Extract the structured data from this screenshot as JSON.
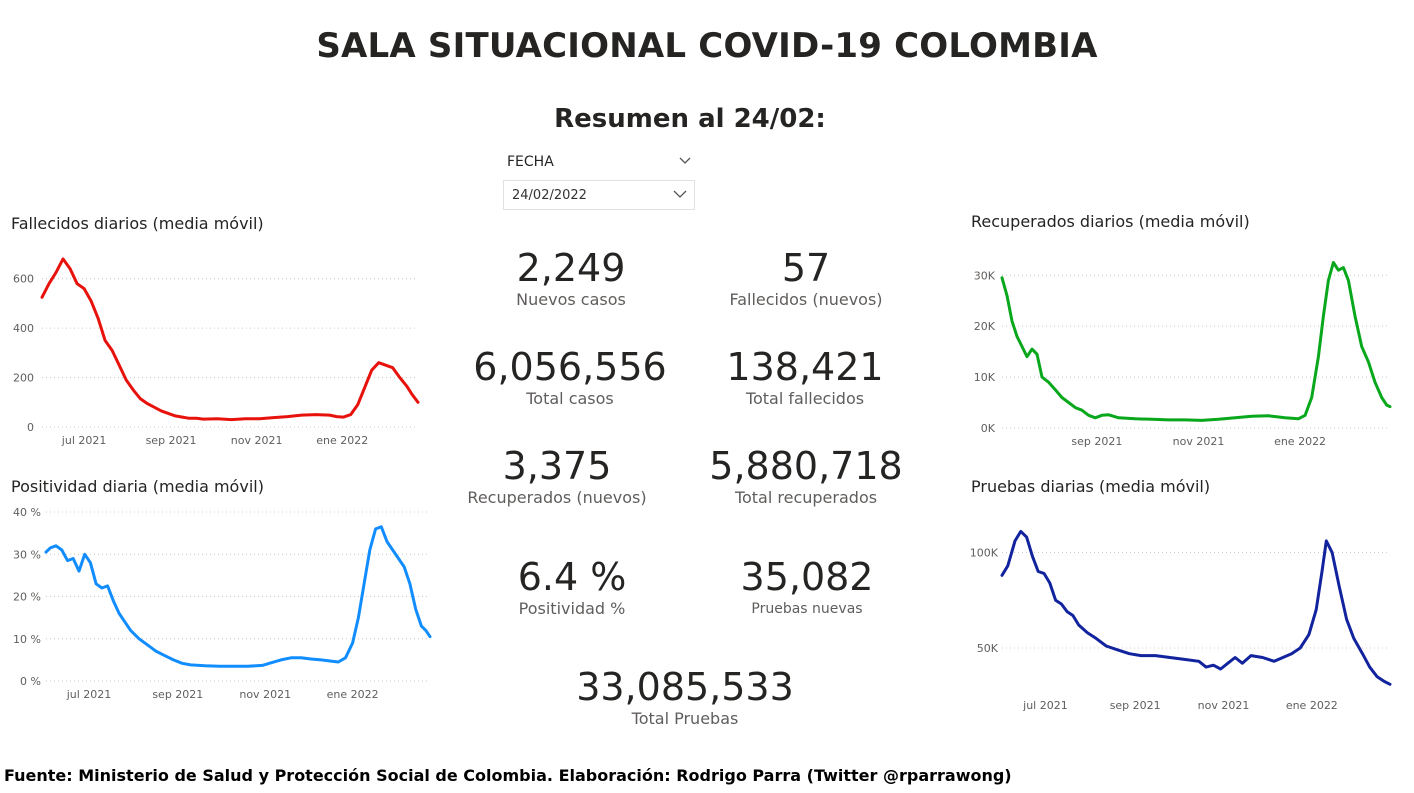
{
  "header": {
    "title": "SALA SITUACIONAL COVID-19 COLOMBIA",
    "subtitle": "Resumen al 24/02:"
  },
  "filter": {
    "label": "FECHA",
    "value": "24/02/2022"
  },
  "kpis": {
    "nuevos_casos": {
      "value": "2,249",
      "label": "Nuevos casos"
    },
    "fallecidos_nuevos": {
      "value": "57",
      "label": "Fallecidos (nuevos)"
    },
    "total_casos": {
      "value": "6,056,556",
      "label": "Total casos"
    },
    "total_fallecidos": {
      "value": "138,421",
      "label": "Total fallecidos"
    },
    "recuperados_nuevos": {
      "value": "3,375",
      "label": "Recuperados (nuevos)"
    },
    "total_recuperados": {
      "value": "5,880,718",
      "label": "Total recuperados"
    },
    "positividad": {
      "value": "6.4 %",
      "label": "Positividad %"
    },
    "pruebas_nuevas": {
      "value": "35,082",
      "label": "Pruebas nuevas"
    },
    "total_pruebas": {
      "value": "33,085,533",
      "label": "Total Pruebas"
    }
  },
  "footer": {
    "text": "Fuente: Ministerio de Salud y Protección Social de Colombia. Elaboración: Rodrigo Parra (Twitter @rparrawong)"
  },
  "chart_data": [
    {
      "id": "fallecidos",
      "type": "line",
      "title": "Fallecidos diarios (media móvil)",
      "color": "#e8120c",
      "x_range": [
        "2021-06-01",
        "2022-02-24"
      ],
      "x_ticks": [
        {
          "date": "2021-07-01",
          "label": "jul 2021"
        },
        {
          "date": "2021-09-01",
          "label": "sep 2021"
        },
        {
          "date": "2021-11-01",
          "label": "nov 2021"
        },
        {
          "date": "2022-01-01",
          "label": "ene 2022"
        }
      ],
      "ylim": [
        0,
        700
      ],
      "y_ticks": [
        {
          "v": 0,
          "label": "0"
        },
        {
          "v": 200,
          "label": "200"
        },
        {
          "v": 400,
          "label": "400"
        },
        {
          "v": 600,
          "label": "600"
        }
      ],
      "grid": true,
      "series": [
        {
          "points": [
            [
              "2021-06-01",
              525
            ],
            [
              "2021-06-06",
              580
            ],
            [
              "2021-06-11",
              625
            ],
            [
              "2021-06-16",
              680
            ],
            [
              "2021-06-21",
              640
            ],
            [
              "2021-06-26",
              580
            ],
            [
              "2021-07-01",
              560
            ],
            [
              "2021-07-06",
              510
            ],
            [
              "2021-07-11",
              440
            ],
            [
              "2021-07-16",
              350
            ],
            [
              "2021-07-21",
              310
            ],
            [
              "2021-07-26",
              250
            ],
            [
              "2021-07-31",
              190
            ],
            [
              "2021-08-05",
              150
            ],
            [
              "2021-08-10",
              115
            ],
            [
              "2021-08-15",
              95
            ],
            [
              "2021-08-20",
              80
            ],
            [
              "2021-08-25",
              65
            ],
            [
              "2021-08-30",
              55
            ],
            [
              "2021-09-04",
              45
            ],
            [
              "2021-09-09",
              40
            ],
            [
              "2021-09-14",
              35
            ],
            [
              "2021-09-19",
              35
            ],
            [
              "2021-09-24",
              32
            ],
            [
              "2021-10-04",
              33
            ],
            [
              "2021-10-14",
              30
            ],
            [
              "2021-10-24",
              33
            ],
            [
              "2021-11-03",
              33
            ],
            [
              "2021-11-13",
              38
            ],
            [
              "2021-11-23",
              42
            ],
            [
              "2021-12-03",
              48
            ],
            [
              "2021-12-13",
              50
            ],
            [
              "2021-12-23",
              48
            ],
            [
              "2021-12-28",
              42
            ],
            [
              "2022-01-02",
              40
            ],
            [
              "2022-01-07",
              50
            ],
            [
              "2022-01-12",
              90
            ],
            [
              "2022-01-17",
              160
            ],
            [
              "2022-01-22",
              230
            ],
            [
              "2022-01-27",
              260
            ],
            [
              "2022-02-01",
              250
            ],
            [
              "2022-02-06",
              240
            ],
            [
              "2022-02-11",
              200
            ],
            [
              "2022-02-16",
              165
            ],
            [
              "2022-02-20",
              130
            ],
            [
              "2022-02-24",
              100
            ]
          ]
        }
      ]
    },
    {
      "id": "positividad",
      "type": "line",
      "title": "Positividad diaria (media móvil)",
      "color": "#118dff",
      "x_range": [
        "2021-06-01",
        "2022-02-24"
      ],
      "x_ticks": [
        {
          "date": "2021-07-01",
          "label": "jul 2021"
        },
        {
          "date": "2021-09-01",
          "label": "sep 2021"
        },
        {
          "date": "2021-11-01",
          "label": "nov 2021"
        },
        {
          "date": "2022-01-01",
          "label": "ene 2022"
        }
      ],
      "ylim": [
        0,
        40
      ],
      "y_ticks": [
        {
          "v": 0,
          "label": "0 %"
        },
        {
          "v": 10,
          "label": "10 %"
        },
        {
          "v": 20,
          "label": "20 %"
        },
        {
          "v": 30,
          "label": "30 %"
        },
        {
          "v": 40,
          "label": "40 %"
        }
      ],
      "grid": true,
      "series": [
        {
          "points": [
            [
              "2021-06-01",
              30.5
            ],
            [
              "2021-06-04",
              31.5
            ],
            [
              "2021-06-08",
              32
            ],
            [
              "2021-06-12",
              31
            ],
            [
              "2021-06-16",
              28.5
            ],
            [
              "2021-06-20",
              29
            ],
            [
              "2021-06-24",
              26
            ],
            [
              "2021-06-28",
              30
            ],
            [
              "2021-07-02",
              28
            ],
            [
              "2021-07-06",
              23
            ],
            [
              "2021-07-10",
              22
            ],
            [
              "2021-07-14",
              22.5
            ],
            [
              "2021-07-18",
              19
            ],
            [
              "2021-07-22",
              16
            ],
            [
              "2021-07-26",
              14
            ],
            [
              "2021-07-30",
              12
            ],
            [
              "2021-08-05",
              10
            ],
            [
              "2021-08-11",
              8.5
            ],
            [
              "2021-08-17",
              7
            ],
            [
              "2021-08-23",
              6
            ],
            [
              "2021-08-29",
              5
            ],
            [
              "2021-09-04",
              4.2
            ],
            [
              "2021-09-10",
              3.8
            ],
            [
              "2021-09-20",
              3.6
            ],
            [
              "2021-09-30",
              3.5
            ],
            [
              "2021-10-10",
              3.5
            ],
            [
              "2021-10-20",
              3.5
            ],
            [
              "2021-10-30",
              3.7
            ],
            [
              "2021-11-05",
              4.3
            ],
            [
              "2021-11-12",
              5
            ],
            [
              "2021-11-19",
              5.5
            ],
            [
              "2021-11-26",
              5.5
            ],
            [
              "2021-12-03",
              5.2
            ],
            [
              "2021-12-10",
              5
            ],
            [
              "2021-12-17",
              4.7
            ],
            [
              "2021-12-22",
              4.5
            ],
            [
              "2021-12-27",
              5.5
            ],
            [
              "2022-01-01",
              9
            ],
            [
              "2022-01-05",
              15
            ],
            [
              "2022-01-09",
              23
            ],
            [
              "2022-01-13",
              31
            ],
            [
              "2022-01-17",
              36
            ],
            [
              "2022-01-21",
              36.5
            ],
            [
              "2022-01-25",
              33
            ],
            [
              "2022-01-29",
              31
            ],
            [
              "2022-02-02",
              29
            ],
            [
              "2022-02-06",
              27
            ],
            [
              "2022-02-10",
              23
            ],
            [
              "2022-02-14",
              17
            ],
            [
              "2022-02-18",
              13
            ],
            [
              "2022-02-21",
              12
            ],
            [
              "2022-02-24",
              10.5
            ]
          ]
        }
      ]
    },
    {
      "id": "recuperados",
      "type": "line",
      "title": "Recuperados diarios (media móvil)",
      "color": "#09a81c",
      "x_range": [
        "2021-07-06",
        "2022-02-24"
      ],
      "x_ticks": [
        {
          "date": "2021-09-01",
          "label": "sep 2021"
        },
        {
          "date": "2021-11-01",
          "label": "nov 2021"
        },
        {
          "date": "2022-01-01",
          "label": "ene 2022"
        }
      ],
      "ylim": [
        0,
        33000
      ],
      "y_ticks": [
        {
          "v": 0,
          "label": "0K"
        },
        {
          "v": 10000,
          "label": "10K"
        },
        {
          "v": 20000,
          "label": "20K"
        },
        {
          "v": 30000,
          "label": "30K"
        }
      ],
      "grid": true,
      "series": [
        {
          "points": [
            [
              "2021-07-06",
              29500
            ],
            [
              "2021-07-09",
              26000
            ],
            [
              "2021-07-12",
              21000
            ],
            [
              "2021-07-15",
              18000
            ],
            [
              "2021-07-18",
              16000
            ],
            [
              "2021-07-21",
              14000
            ],
            [
              "2021-07-24",
              15500
            ],
            [
              "2021-07-27",
              14500
            ],
            [
              "2021-07-30",
              10000
            ],
            [
              "2021-08-03",
              9000
            ],
            [
              "2021-08-07",
              7500
            ],
            [
              "2021-08-11",
              6000
            ],
            [
              "2021-08-15",
              5000
            ],
            [
              "2021-08-19",
              4000
            ],
            [
              "2021-08-23",
              3500
            ],
            [
              "2021-08-27",
              2500
            ],
            [
              "2021-08-31",
              2000
            ],
            [
              "2021-09-04",
              2500
            ],
            [
              "2021-09-08",
              2600
            ],
            [
              "2021-09-14",
              2000
            ],
            [
              "2021-09-24",
              1800
            ],
            [
              "2021-10-04",
              1700
            ],
            [
              "2021-10-14",
              1600
            ],
            [
              "2021-10-24",
              1600
            ],
            [
              "2021-11-03",
              1500
            ],
            [
              "2021-11-13",
              1700
            ],
            [
              "2021-11-23",
              2000
            ],
            [
              "2021-12-03",
              2300
            ],
            [
              "2021-12-13",
              2400
            ],
            [
              "2021-12-23",
              2000
            ],
            [
              "2021-12-31",
              1800
            ],
            [
              "2022-01-04",
              2500
            ],
            [
              "2022-01-08",
              6000
            ],
            [
              "2022-01-12",
              14000
            ],
            [
              "2022-01-15",
              22000
            ],
            [
              "2022-01-18",
              29000
            ],
            [
              "2022-01-21",
              32500
            ],
            [
              "2022-01-24",
              31000
            ],
            [
              "2022-01-27",
              31500
            ],
            [
              "2022-01-30",
              29000
            ],
            [
              "2022-02-03",
              22000
            ],
            [
              "2022-02-07",
              16000
            ],
            [
              "2022-02-11",
              13000
            ],
            [
              "2022-02-15",
              9000
            ],
            [
              "2022-02-19",
              6000
            ],
            [
              "2022-02-22",
              4500
            ],
            [
              "2022-02-24",
              4200
            ]
          ]
        }
      ]
    },
    {
      "id": "pruebas",
      "type": "line",
      "title": "Pruebas diarias (media móvil)",
      "color": "#12239e",
      "x_range": [
        "2021-06-01",
        "2022-02-24"
      ],
      "x_ticks": [
        {
          "date": "2021-07-01",
          "label": "jul 2021"
        },
        {
          "date": "2021-09-01",
          "label": "sep 2021"
        },
        {
          "date": "2021-11-01",
          "label": "nov 2021"
        },
        {
          "date": "2022-01-01",
          "label": "ene 2022"
        }
      ],
      "ylim": [
        28000,
        118000
      ],
      "y_ticks": [
        {
          "v": 50000,
          "label": "50K"
        },
        {
          "v": 100000,
          "label": "100K"
        }
      ],
      "grid": true,
      "series": [
        {
          "points": [
            [
              "2021-06-01",
              88000
            ],
            [
              "2021-06-05",
              93000
            ],
            [
              "2021-06-10",
              106000
            ],
            [
              "2021-06-14",
              111000
            ],
            [
              "2021-06-18",
              108000
            ],
            [
              "2021-06-22",
              98000
            ],
            [
              "2021-06-26",
              90000
            ],
            [
              "2021-06-30",
              89000
            ],
            [
              "2021-07-04",
              84000
            ],
            [
              "2021-07-08",
              75000
            ],
            [
              "2021-07-12",
              73000
            ],
            [
              "2021-07-16",
              69000
            ],
            [
              "2021-07-20",
              67000
            ],
            [
              "2021-07-24",
              62000
            ],
            [
              "2021-07-30",
              58000
            ],
            [
              "2021-08-05",
              55000
            ],
            [
              "2021-08-12",
              51000
            ],
            [
              "2021-08-20",
              49000
            ],
            [
              "2021-08-28",
              47000
            ],
            [
              "2021-09-05",
              46000
            ],
            [
              "2021-09-15",
              46000
            ],
            [
              "2021-09-25",
              45000
            ],
            [
              "2021-10-05",
              44000
            ],
            [
              "2021-10-15",
              43000
            ],
            [
              "2021-10-20",
              40000
            ],
            [
              "2021-10-25",
              41000
            ],
            [
              "2021-10-30",
              39000
            ],
            [
              "2021-11-04",
              42000
            ],
            [
              "2021-11-09",
              45000
            ],
            [
              "2021-11-14",
              42000
            ],
            [
              "2021-11-20",
              46000
            ],
            [
              "2021-11-28",
              45000
            ],
            [
              "2021-12-06",
              43000
            ],
            [
              "2021-12-12",
              45000
            ],
            [
              "2021-12-18",
              47000
            ],
            [
              "2021-12-24",
              50000
            ],
            [
              "2021-12-30",
              57000
            ],
            [
              "2022-01-04",
              70000
            ],
            [
              "2022-01-08",
              90000
            ],
            [
              "2022-01-11",
              106000
            ],
            [
              "2022-01-15",
              100000
            ],
            [
              "2022-01-20",
              82000
            ],
            [
              "2022-01-25",
              65000
            ],
            [
              "2022-01-30",
              55000
            ],
            [
              "2022-02-05",
              47000
            ],
            [
              "2022-02-10",
              40000
            ],
            [
              "2022-02-15",
              35000
            ],
            [
              "2022-02-20",
              32500
            ],
            [
              "2022-02-24",
              31000
            ]
          ]
        }
      ]
    }
  ]
}
